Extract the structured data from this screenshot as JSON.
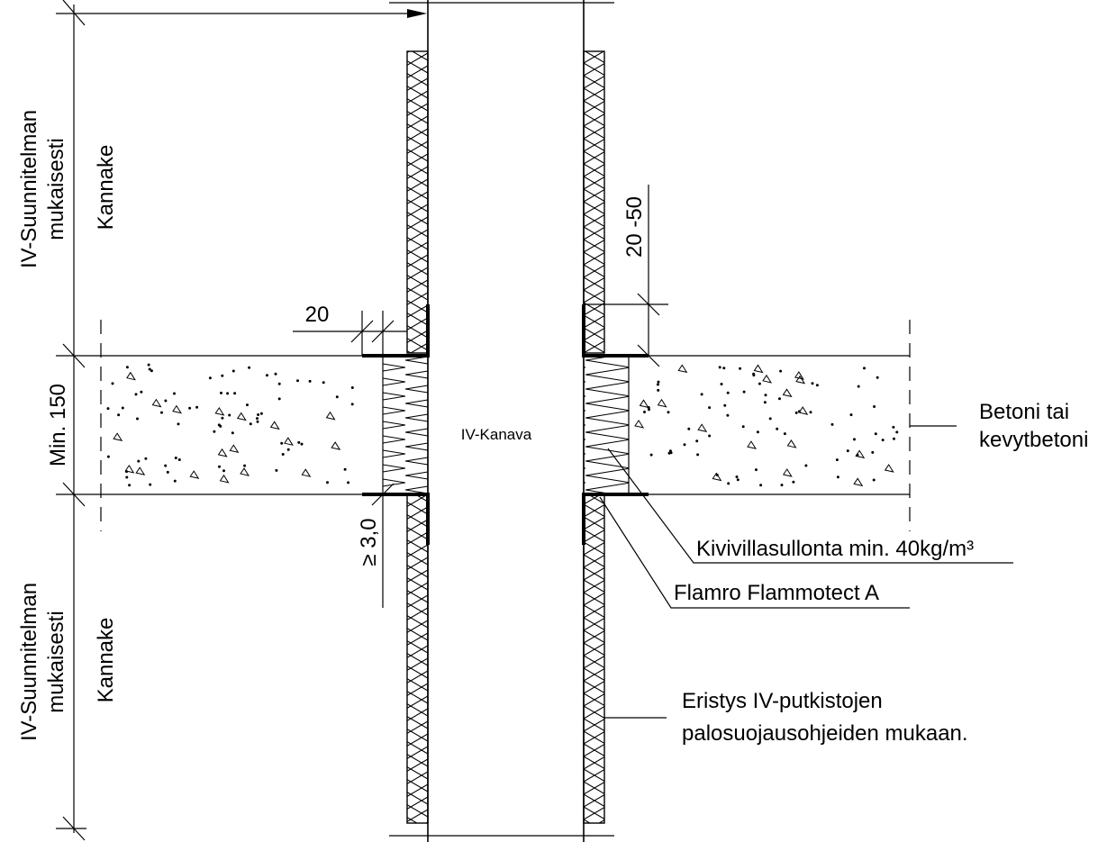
{
  "labels": {
    "dim_top_left": "IV-Suunnitelman",
    "dim_top_left_2": "mukaisesti",
    "kannake_top": "Kannake",
    "dim_bottom_left": "IV-Suunnitelman",
    "dim_bottom_left_2": "mukaisesti",
    "kannake_bottom": "Kannake",
    "min_150": "Min. 150",
    "dim_20": "20",
    "dim_20_50": "20 -50",
    "dim_ge_3": "≥ 3,0",
    "duct": "IV-Kanava",
    "concrete_1": "Betoni tai",
    "concrete_2": "kevytbetoni",
    "rockwool": "Kivivillasullonta min. 40kg/m³",
    "flamro": "Flamro Flammotect A",
    "insulation_1": "Eristys IV-putkistojen",
    "insulation_2": "palosuojausohjeiden mukaan."
  }
}
